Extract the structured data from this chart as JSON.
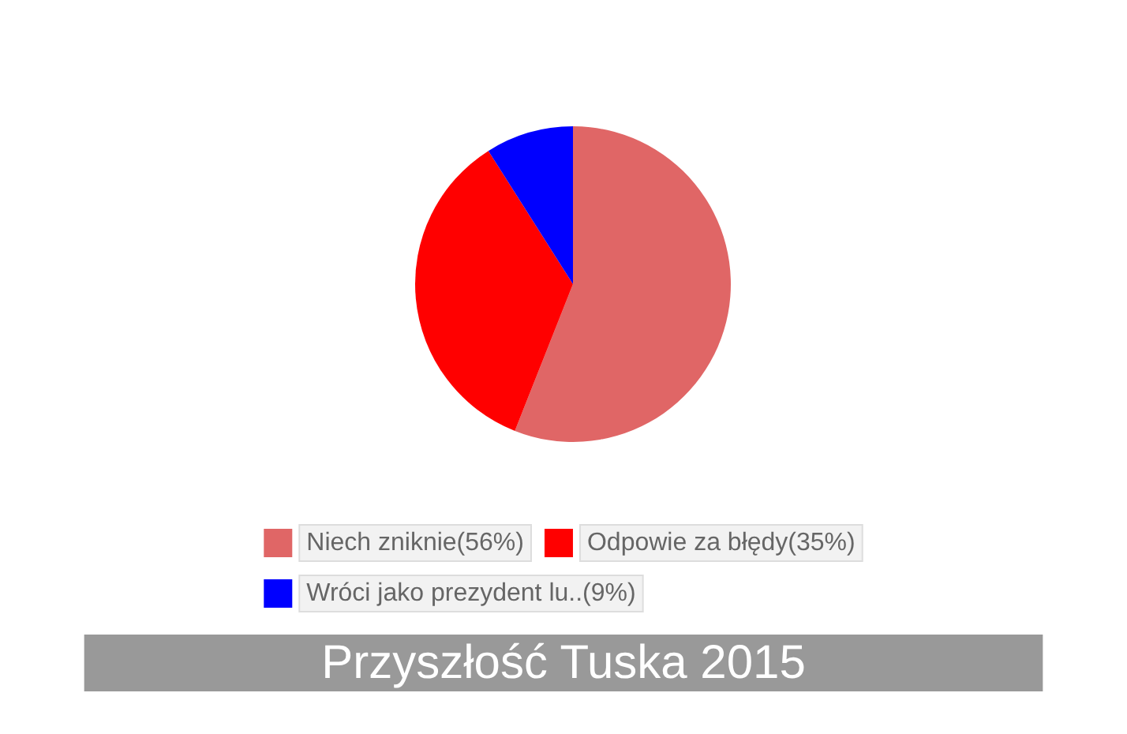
{
  "chart_data": {
    "type": "pie",
    "title": "Przyszłość Tuska 2015",
    "categories": [
      "Niech zniknie(56%)",
      "Odpowie za błędy(35%)",
      "Wróci jako prezydent lu..(9%)"
    ],
    "values": [
      56,
      35,
      9
    ],
    "colors": [
      "#e06666",
      "#ff0000",
      "#0000ff"
    ],
    "legend": "bottom"
  }
}
